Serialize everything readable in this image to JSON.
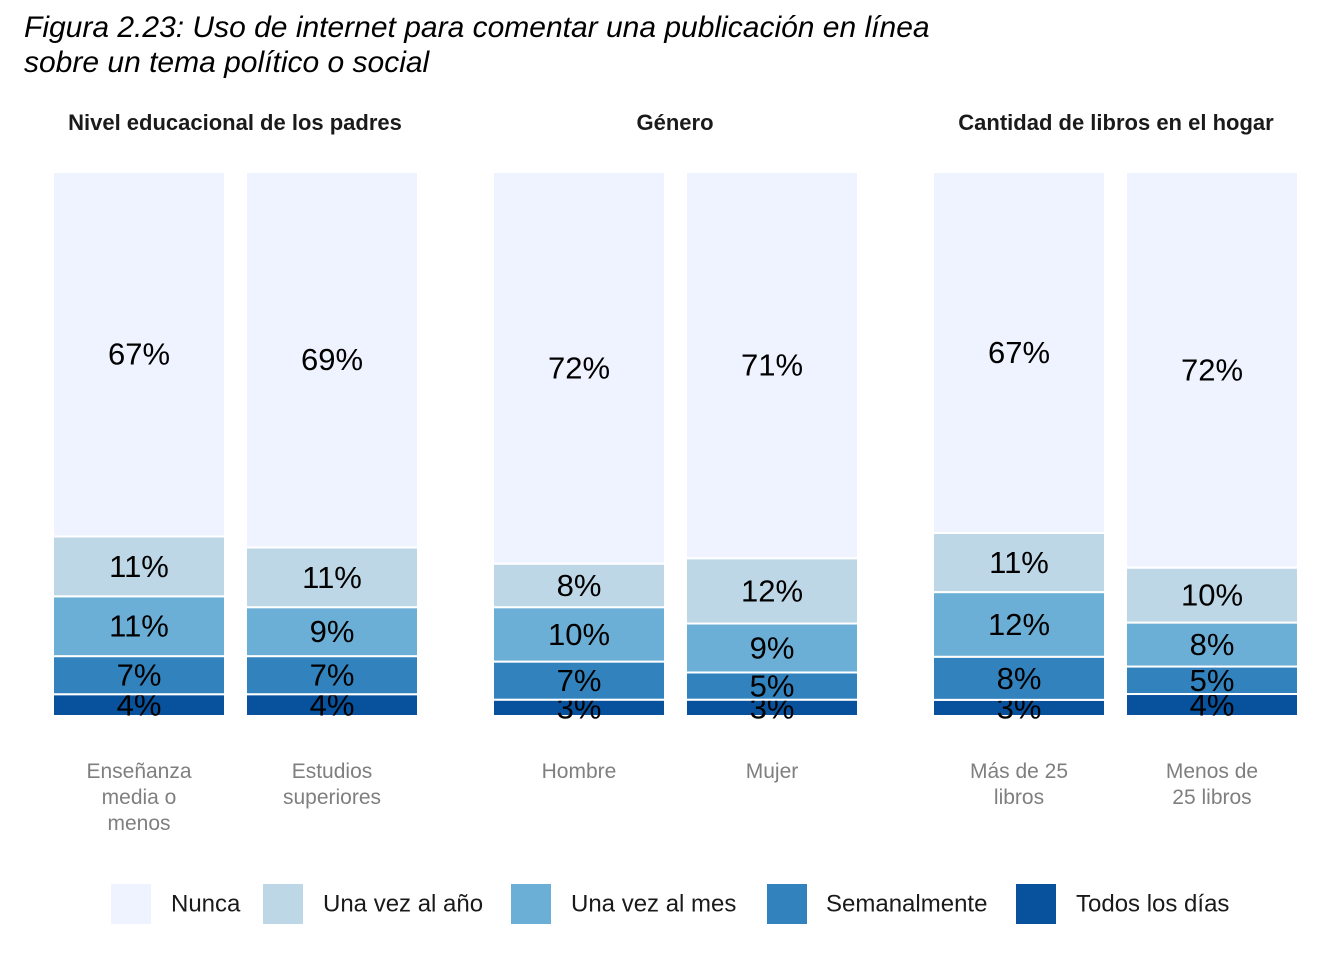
{
  "title": {
    "line1": "Figura 2.23: Uso de internet para comentar una publicación en línea",
    "line2": "sobre un tema político o social"
  },
  "chart_data": {
    "type": "bar",
    "stacked": true,
    "percent": true,
    "legend_position": "bottom",
    "grid": false,
    "levels": [
      "Todos los días",
      "Semanalmente",
      "Una vez al mes",
      "Una vez al año",
      "Nunca"
    ],
    "legend": [
      "Nunca",
      "Una vez al año",
      "Una vez al mes",
      "Semanalmente",
      "Todos los días"
    ],
    "colors": {
      "Nunca": "#eff3ff",
      "Una vez al año": "#bdd7e7",
      "Una vez al mes": "#6baed6",
      "Semanalmente": "#3182bd",
      "Todos los días": "#08519c"
    },
    "panels": [
      {
        "title": "Nivel educacional de los padres",
        "bars": [
          {
            "label": [
              "Enseñanza",
              "media o",
              "menos"
            ],
            "values": [
              4,
              7,
              11,
              11,
              67
            ]
          },
          {
            "label": [
              "Estudios",
              "superiores"
            ],
            "values": [
              4,
              7,
              9,
              11,
              69
            ]
          }
        ]
      },
      {
        "title": "Género",
        "bars": [
          {
            "label": [
              "Hombre"
            ],
            "values": [
              3,
              7,
              10,
              8,
              72
            ]
          },
          {
            "label": [
              "Mujer"
            ],
            "values": [
              3,
              5,
              9,
              12,
              71
            ]
          }
        ]
      },
      {
        "title": "Cantidad de libros en el hogar",
        "bars": [
          {
            "label": [
              "Más de 25",
              "libros"
            ],
            "values": [
              3,
              8,
              12,
              11,
              67
            ]
          },
          {
            "label": [
              "Menos de",
              "25 libros"
            ],
            "values": [
              4,
              5,
              8,
              10,
              72
            ]
          }
        ]
      }
    ]
  }
}
